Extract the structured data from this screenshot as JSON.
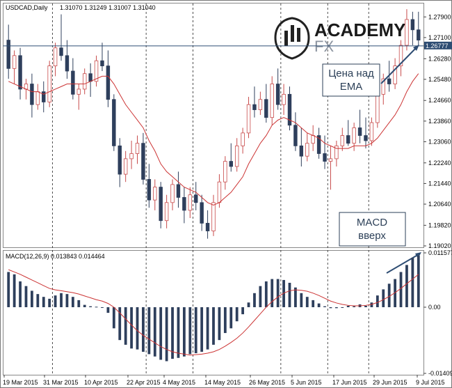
{
  "chart_data": [
    {
      "type": "candlestick",
      "title": "USDCAD,Daily",
      "ohlc_header": "1.31070 1.31249 1.31007 1.31040",
      "ylim": [
        1.1902,
        1.2834
      ],
      "y_ticks": [
        "1.27900",
        "1.27100",
        "1.26280",
        "1.25480",
        "1.24660",
        "1.23860",
        "1.23060",
        "1.22240",
        "1.21440",
        "1.20640",
        "1.19820",
        "1.19020"
      ],
      "current_price": "1.26777",
      "x_ticks": [
        "19 Mar 2015",
        "31 Mar 2015",
        "10 Apr 2015",
        "22 Apr 2015",
        "4 May 2015",
        "14 May 2015",
        "26 May 2015",
        "5 Jun 2015",
        "17 Jun 2015",
        "29 Jun 2015",
        "9 Jul 2015"
      ],
      "candles": [
        [
          1.27,
          1.276,
          1.255,
          1.259
        ],
        [
          1.259,
          1.266,
          1.253,
          1.264
        ],
        [
          1.264,
          1.267,
          1.247,
          1.251
        ],
        [
          1.251,
          1.255,
          1.247,
          1.253
        ],
        [
          1.253,
          1.257,
          1.24,
          1.245
        ],
        [
          1.245,
          1.253,
          1.243,
          1.25
        ],
        [
          1.25,
          1.254,
          1.242,
          1.246
        ],
        [
          1.246,
          1.262,
          1.244,
          1.26
        ],
        [
          1.26,
          1.269,
          1.256,
          1.267
        ],
        [
          1.267,
          1.28,
          1.262,
          1.264
        ],
        [
          1.264,
          1.27,
          1.255,
          1.258
        ],
        [
          1.258,
          1.263,
          1.247,
          1.249
        ],
        [
          1.249,
          1.253,
          1.243,
          1.251
        ],
        [
          1.251,
          1.259,
          1.249,
          1.257
        ],
        [
          1.257,
          1.261,
          1.248,
          1.254
        ],
        [
          1.254,
          1.264,
          1.252,
          1.262
        ],
        [
          1.262,
          1.269,
          1.258,
          1.26
        ],
        [
          1.26,
          1.266,
          1.244,
          1.247
        ],
        [
          1.247,
          1.249,
          1.227,
          1.229
        ],
        [
          1.229,
          1.232,
          1.213,
          1.218
        ],
        [
          1.218,
          1.227,
          1.215,
          1.224
        ],
        [
          1.224,
          1.231,
          1.22,
          1.226
        ],
        [
          1.226,
          1.233,
          1.222,
          1.23
        ],
        [
          1.23,
          1.234,
          1.214,
          1.216
        ],
        [
          1.216,
          1.222,
          1.205,
          1.208
        ],
        [
          1.208,
          1.216,
          1.204,
          1.213
        ],
        [
          1.213,
          1.215,
          1.197,
          1.2
        ],
        [
          1.2,
          1.21,
          1.197,
          1.207
        ],
        [
          1.207,
          1.216,
          1.204,
          1.214
        ],
        [
          1.214,
          1.219,
          1.205,
          1.209
        ],
        [
          1.209,
          1.213,
          1.199,
          1.204
        ],
        [
          1.204,
          1.213,
          1.201,
          1.21
        ],
        [
          1.21,
          1.215,
          1.204,
          1.207
        ],
        [
          1.207,
          1.21,
          1.196,
          1.199
        ],
        [
          1.199,
          1.204,
          1.193,
          1.196
        ],
        [
          1.196,
          1.21,
          1.194,
          1.207
        ],
        [
          1.207,
          1.218,
          1.205,
          1.215
        ],
        [
          1.215,
          1.225,
          1.212,
          1.223
        ],
        [
          1.223,
          1.23,
          1.219,
          1.221
        ],
        [
          1.221,
          1.232,
          1.219,
          1.229
        ],
        [
          1.229,
          1.236,
          1.226,
          1.234
        ],
        [
          1.234,
          1.248,
          1.232,
          1.245
        ],
        [
          1.245,
          1.252,
          1.24,
          1.243
        ],
        [
          1.243,
          1.25,
          1.241,
          1.247
        ],
        [
          1.247,
          1.253,
          1.238,
          1.24
        ],
        [
          1.24,
          1.256,
          1.237,
          1.253
        ],
        [
          1.253,
          1.259,
          1.243,
          1.245
        ],
        [
          1.245,
          1.253,
          1.241,
          1.249
        ],
        [
          1.249,
          1.252,
          1.235,
          1.237
        ],
        [
          1.237,
          1.242,
          1.227,
          1.229
        ],
        [
          1.229,
          1.236,
          1.221,
          1.225
        ],
        [
          1.225,
          1.234,
          1.223,
          1.23
        ],
        [
          1.23,
          1.237,
          1.227,
          1.233
        ],
        [
          1.233,
          1.236,
          1.224,
          1.226
        ],
        [
          1.226,
          1.233,
          1.22,
          1.223
        ],
        [
          1.223,
          1.229,
          1.212,
          1.224
        ],
        [
          1.224,
          1.231,
          1.221,
          1.229
        ],
        [
          1.229,
          1.236,
          1.227,
          1.233
        ],
        [
          1.233,
          1.239,
          1.229,
          1.23
        ],
        [
          1.23,
          1.238,
          1.227,
          1.236
        ],
        [
          1.236,
          1.243,
          1.23,
          1.233
        ],
        [
          1.233,
          1.24,
          1.228,
          1.231
        ],
        [
          1.231,
          1.24,
          1.229,
          1.238
        ],
        [
          1.238,
          1.253,
          1.236,
          1.249
        ],
        [
          1.249,
          1.257,
          1.245,
          1.255
        ],
        [
          1.255,
          1.262,
          1.25,
          1.253
        ],
        [
          1.253,
          1.263,
          1.251,
          1.26
        ],
        [
          1.26,
          1.27,
          1.256,
          1.268
        ],
        [
          1.268,
          1.282,
          1.266,
          1.278
        ],
        [
          1.278,
          1.281,
          1.268,
          1.274
        ],
        [
          1.274,
          1.281,
          1.268,
          1.27
        ]
      ],
      "ema": [
        1.254,
        1.253,
        1.252,
        1.251,
        1.25,
        1.25,
        1.249,
        1.25,
        1.251,
        1.252,
        1.253,
        1.253,
        1.253,
        1.253,
        1.254,
        1.255,
        1.256,
        1.256,
        1.253,
        1.249,
        1.245,
        1.242,
        1.239,
        1.236,
        1.231,
        1.227,
        1.222,
        1.219,
        1.217,
        1.215,
        1.213,
        1.212,
        1.211,
        1.209,
        1.207,
        1.206,
        1.207,
        1.209,
        1.211,
        1.214,
        1.217,
        1.222,
        1.226,
        1.23,
        1.233,
        1.237,
        1.239,
        1.24,
        1.239,
        1.238,
        1.236,
        1.234,
        1.233,
        1.232,
        1.23,
        1.229,
        1.228,
        1.228,
        1.228,
        1.229,
        1.229,
        1.229,
        1.23,
        1.232,
        1.235,
        1.238,
        1.241,
        1.245,
        1.25,
        1.254,
        1.257
      ],
      "colors": {
        "bull": "#ffffff",
        "bull_outline": "#c84a4a",
        "bear": "#2e3f5c",
        "ema": "#cc3333",
        "current_line": "#2e4d73",
        "current_bg": "#2e4d73"
      }
    },
    {
      "type": "bar",
      "title": "MACD(12,26,9) 0.013843 0.014464",
      "ylim": [
        -0.014097,
        0.011577
      ],
      "y_ticks": [
        "0.011577",
        "0.00",
        "-0.014097"
      ],
      "values": [
        0.0075,
        0.007,
        0.0055,
        0.0045,
        0.0035,
        0.0028,
        0.0022,
        0.0018,
        0.0025,
        0.003,
        0.0028,
        0.0022,
        0.0015,
        0.0005,
        0.0002,
        0.0001,
        0.0,
        -0.0012,
        -0.0045,
        -0.007,
        -0.008,
        -0.0088,
        -0.009,
        -0.0095,
        -0.01,
        -0.0105,
        -0.0112,
        -0.0115,
        -0.011,
        -0.0108,
        -0.0105,
        -0.01,
        -0.0098,
        -0.0095,
        -0.009,
        -0.008,
        -0.007,
        -0.0055,
        -0.0045,
        -0.003,
        -0.0015,
        0.001,
        0.003,
        0.0045,
        0.0055,
        0.006,
        0.006,
        0.0058,
        0.0052,
        0.0042,
        0.003,
        0.0022,
        0.0015,
        0.0008,
        0.0002,
        -0.0002,
        -0.0002,
        0.0,
        0.0003,
        0.0002,
        0.0006,
        0.0003,
        0.001,
        0.0025,
        0.0038,
        0.005,
        0.006,
        0.0075,
        0.009,
        0.0105,
        0.011
      ],
      "signal": [
        0.008,
        0.0075,
        0.007,
        0.0064,
        0.0058,
        0.0052,
        0.0046,
        0.004,
        0.0037,
        0.0035,
        0.0033,
        0.0031,
        0.0028,
        0.0024,
        0.002,
        0.0016,
        0.0013,
        0.0008,
        0.0,
        -0.0012,
        -0.0025,
        -0.0038,
        -0.005,
        -0.006,
        -0.0068,
        -0.0076,
        -0.0084,
        -0.009,
        -0.0095,
        -0.0098,
        -0.01,
        -0.0102,
        -0.0101,
        -0.01,
        -0.0098,
        -0.0095,
        -0.009,
        -0.0083,
        -0.0075,
        -0.0066,
        -0.0055,
        -0.0042,
        -0.0028,
        -0.0014,
        0.0,
        0.0012,
        0.0022,
        0.003,
        0.0035,
        0.0037,
        0.0036,
        0.0034,
        0.003,
        0.0025,
        0.0019,
        0.0013,
        0.0009,
        0.0006,
        0.0004,
        0.0003,
        0.0003,
        0.0004,
        0.0006,
        0.001,
        0.0016,
        0.0023,
        0.0031,
        0.004,
        0.005,
        0.006,
        0.007
      ],
      "colors": {
        "histogram": "#2e3f5c",
        "signal": "#cc3333"
      }
    }
  ],
  "annotations": {
    "ema_callout": "Цена над\nEMA",
    "macd_callout": "MACD\nвверх"
  },
  "logo": {
    "main": "ACADEMY",
    "sub": "FX"
  }
}
